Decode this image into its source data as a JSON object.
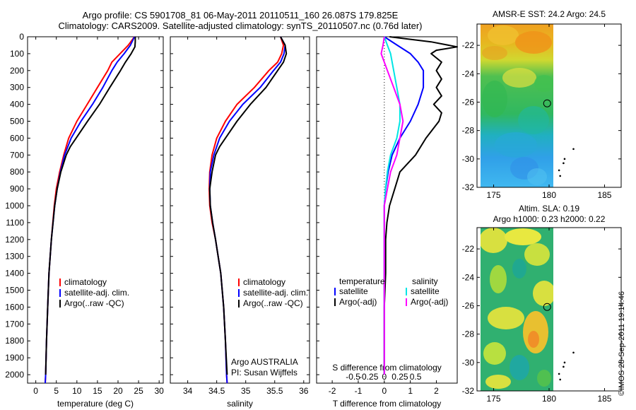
{
  "title_line1": "Argo profile: CS 5901708_81 06-May-2011 20110511_160 26.087S 179.825E",
  "title_line2": "Climatology: CARS2009. Satellite-adjusted climatology: synTS_20110507.nc (0.76d later)",
  "side_label": "©IMOS 28-Sep-2011 19:14:46",
  "colors": {
    "climatology": "#ff0000",
    "satellite": "#0000ff",
    "argo": "#000000",
    "temp_diff_satellite": "#0000ff",
    "sal_diff_satellite": "#00e5e5",
    "sal_diff_argo": "#ff00ff"
  },
  "chart_data": [
    {
      "type": "line",
      "panel": "temperature",
      "xlabel": "temperature (deg C)",
      "ylabel": "",
      "xlim": [
        -2,
        31
      ],
      "ylim": [
        2050,
        0
      ],
      "xticks": [
        0,
        5,
        10,
        15,
        20,
        25,
        30
      ],
      "yticks": [
        0,
        100,
        200,
        300,
        400,
        500,
        600,
        700,
        800,
        900,
        1000,
        1100,
        1200,
        1300,
        1400,
        1500,
        1600,
        1700,
        1800,
        1900,
        2000
      ],
      "legend": [
        "climatology",
        "satellite-adj. clim.",
        "Argo(..raw -QC)"
      ],
      "legend_position": "bottom-right",
      "series": [
        {
          "name": "climatology",
          "depth": [
            0,
            50,
            100,
            150,
            200,
            300,
            400,
            500,
            600,
            700,
            800,
            900,
            1000,
            1200,
            1400,
            1600,
            1800,
            2000,
            2050
          ],
          "values": [
            24.0,
            22.5,
            20.5,
            18.5,
            17.5,
            15.0,
            12.5,
            10.0,
            8.0,
            6.8,
            5.8,
            5.0,
            4.5,
            3.8,
            3.2,
            2.9,
            2.6,
            2.4,
            2.3
          ]
        },
        {
          "name": "satellite-adj. clim.",
          "depth": [
            0,
            50,
            100,
            150,
            200,
            300,
            400,
            500,
            600,
            700,
            800,
            900,
            1000,
            1200,
            1400,
            1600,
            1800,
            2000,
            2050
          ],
          "values": [
            24.0,
            23.0,
            21.5,
            19.8,
            18.5,
            16.3,
            13.8,
            11.0,
            8.6,
            7.0,
            6.0,
            5.2,
            4.6,
            3.8,
            3.2,
            2.9,
            2.6,
            2.4,
            2.3
          ]
        },
        {
          "name": "Argo(..raw -QC)",
          "depth": [
            0,
            30,
            60,
            100,
            150,
            200,
            300,
            400,
            500,
            600,
            650,
            700,
            800,
            900,
            1000,
            1200,
            1400,
            1600,
            1800,
            2000
          ],
          "values": [
            24.2,
            24.2,
            24.1,
            23.2,
            21.8,
            20.6,
            18.0,
            15.5,
            12.6,
            9.8,
            8.4,
            7.4,
            6.1,
            5.2,
            4.6,
            3.8,
            3.2,
            2.9,
            2.6,
            2.4
          ]
        }
      ]
    },
    {
      "type": "line",
      "panel": "salinity",
      "xlabel": "salinity",
      "xlim": [
        33.7,
        36.1
      ],
      "ylim": [
        2050,
        0
      ],
      "xticks": [
        34,
        34.5,
        35,
        35.5,
        36
      ],
      "xticklabels": [
        "34",
        "34.5",
        "35",
        "35.5",
        "36"
      ],
      "legend": [
        "climatology",
        "satellite-adj. clim.",
        "Argo(..raw -QC)"
      ],
      "legend_position": "bottom-right",
      "annotations": [
        "Argo AUSTRALIA",
        "PI: Susan Wijffels"
      ],
      "series": [
        {
          "name": "climatology",
          "depth": [
            0,
            50,
            100,
            150,
            200,
            300,
            400,
            500,
            600,
            700,
            800,
            900,
            1000,
            1100,
            1200,
            1400,
            1600,
            1800,
            2000,
            2050
          ],
          "values": [
            35.6,
            35.65,
            35.62,
            35.55,
            35.4,
            35.15,
            34.85,
            34.65,
            34.5,
            34.42,
            34.38,
            34.37,
            34.38,
            34.42,
            34.48,
            34.57,
            34.62,
            34.65,
            34.67,
            34.68
          ]
        },
        {
          "name": "satellite-adj. clim.",
          "depth": [
            0,
            50,
            100,
            150,
            200,
            300,
            400,
            500,
            600,
            700,
            800,
            900,
            1000,
            1100,
            1200,
            1400,
            1600,
            1800,
            2000,
            2050
          ],
          "values": [
            35.6,
            35.68,
            35.66,
            35.6,
            35.48,
            35.25,
            34.95,
            34.72,
            34.55,
            34.45,
            34.39,
            34.38,
            34.39,
            34.43,
            34.48,
            34.57,
            34.62,
            34.65,
            34.67,
            34.68
          ]
        },
        {
          "name": "Argo(..raw -QC)",
          "depth": [
            0,
            50,
            100,
            150,
            200,
            300,
            400,
            500,
            600,
            650,
            700,
            800,
            900,
            1000,
            1100,
            1200,
            1400,
            1600,
            1800,
            2000
          ],
          "values": [
            35.6,
            35.68,
            35.7,
            35.65,
            35.55,
            35.35,
            35.08,
            34.85,
            34.65,
            34.55,
            34.48,
            34.42,
            34.38,
            34.39,
            34.43,
            34.48,
            34.57,
            34.62,
            34.65,
            34.68
          ]
        }
      ]
    },
    {
      "type": "line",
      "panel": "difference",
      "xlabel": "T difference from climatology",
      "xlabel_top": "S difference from climatology",
      "xlim": [
        -2.6,
        2.8
      ],
      "ylim": [
        2050,
        0
      ],
      "xticks": [
        -2,
        -1,
        0,
        1,
        2
      ],
      "xticklabels": [
        "-2",
        "-1",
        "0",
        "1",
        "2"
      ],
      "sticks": [
        -0.5,
        -0.25,
        0,
        0.25,
        0.5
      ],
      "sticklabels": [
        "-0.5",
        "-0.25",
        "0",
        "0.25",
        "0.5"
      ],
      "legend_left_title": "temperature",
      "legend_right_title": "salinity",
      "legend": [
        "satellite",
        "Argo(-adj)",
        "satellite",
        "Argo(-adj)"
      ],
      "legend_position": "bottom",
      "series": [
        {
          "name": "satellite",
          "quantity": "temperature",
          "depth": [
            0,
            50,
            100,
            150,
            200,
            300,
            400,
            500,
            600,
            700,
            800,
            900,
            1000,
            1200,
            1400,
            1600,
            2000
          ],
          "values": [
            0.0,
            0.5,
            1.0,
            1.3,
            1.5,
            1.5,
            1.3,
            1.0,
            0.6,
            0.3,
            0.15,
            0.05,
            0.0,
            0.0,
            0.0,
            0.0,
            0.0
          ]
        },
        {
          "name": "Argo(-adj)",
          "quantity": "temperature",
          "depth": [
            0,
            30,
            60,
            80,
            100,
            150,
            200,
            250,
            300,
            350,
            400,
            450,
            500,
            600,
            700,
            800,
            900,
            1000,
            1100,
            1200,
            1400,
            1600,
            2000
          ],
          "values": [
            0.2,
            1.8,
            2.8,
            2.0,
            1.8,
            2.2,
            2.0,
            2.2,
            2.0,
            2.2,
            1.9,
            2.2,
            2.1,
            1.6,
            1.2,
            0.6,
            0.4,
            0.2,
            0.1,
            0.05,
            0.05,
            0.0,
            0.0
          ]
        },
        {
          "name": "satellite",
          "quantity": "salinity",
          "depth": [
            0,
            50,
            100,
            200,
            300,
            400,
            500,
            600,
            700,
            800,
            900,
            1000,
            1200,
            1400,
            1600,
            2000
          ],
          "values": [
            0.0,
            0.05,
            0.1,
            0.15,
            0.2,
            0.25,
            0.25,
            0.2,
            0.1,
            0.05,
            0.02,
            0.0,
            0.0,
            0.0,
            0.0,
            0.0
          ]
        },
        {
          "name": "Argo(-adj)",
          "quantity": "salinity",
          "depth": [
            0,
            50,
            100,
            150,
            200,
            300,
            400,
            500,
            600,
            700,
            800,
            900,
            1000,
            1200,
            1400,
            1600,
            2000
          ],
          "values": [
            0.0,
            -0.02,
            -0.05,
            0.0,
            0.05,
            0.15,
            0.25,
            0.3,
            0.25,
            0.2,
            0.1,
            0.05,
            0.0,
            0.0,
            0.0,
            0.0,
            0.0
          ]
        }
      ]
    },
    {
      "type": "heatmap",
      "panel": "sst-map",
      "title": "AMSR-E SST: 24.2 Argo: 24.5",
      "xlim": [
        173.5,
        186.5
      ],
      "ylim": [
        -32,
        -20.5
      ],
      "xticks": [
        175,
        180,
        185
      ],
      "yticks": [
        -22,
        -24,
        -26,
        -28,
        -30,
        -32
      ],
      "data_right_edge": 180,
      "profile_position": [
        179.825,
        -26.087
      ],
      "track_points": [
        [
          182.2,
          -29.3
        ],
        [
          181.4,
          -30.0
        ],
        [
          181.3,
          -30.3
        ],
        [
          180.9,
          -30.8
        ],
        [
          181.0,
          -31.2
        ]
      ]
    },
    {
      "type": "heatmap",
      "panel": "sla-map",
      "title": "Altim. SLA: 0.19",
      "subtitle": "Argo h1000: 0.23 h2000: 0.22",
      "xlim": [
        173.5,
        186.5
      ],
      "ylim": [
        -32,
        -20.5
      ],
      "xticks": [
        175,
        180,
        185
      ],
      "yticks": [
        -22,
        -24,
        -26,
        -28,
        -30,
        -32
      ],
      "data_right_edge": 180,
      "profile_position": [
        179.825,
        -26.087
      ],
      "track_points": [
        [
          182.2,
          -29.3
        ],
        [
          181.4,
          -30.0
        ],
        [
          181.3,
          -30.3
        ],
        [
          180.9,
          -30.8
        ],
        [
          181.0,
          -31.2
        ]
      ]
    }
  ]
}
